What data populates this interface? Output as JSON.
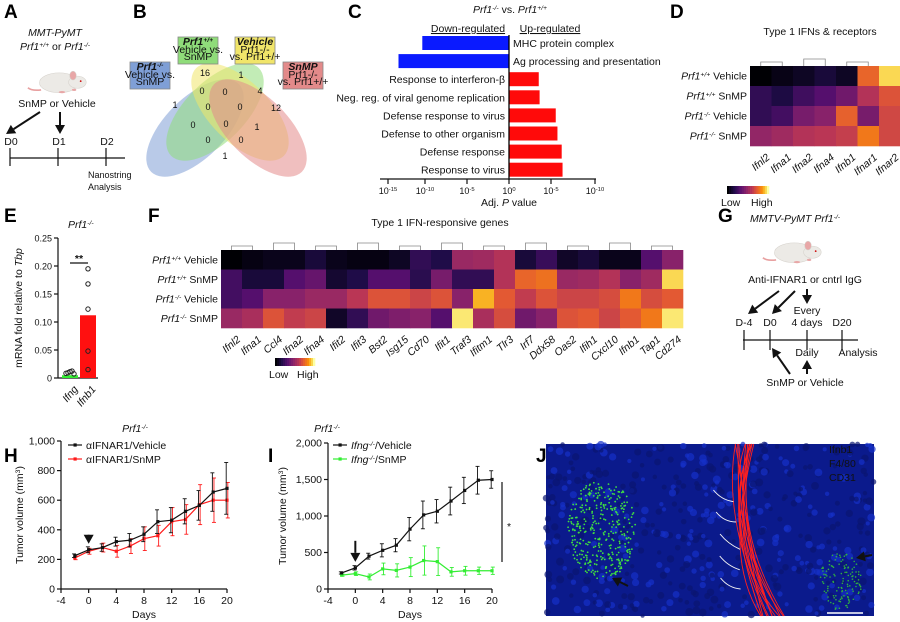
{
  "panels": {
    "A": {
      "label": "A",
      "title_line1": "MMT-PyMT",
      "title_line2": {
        "g1": "Prf1",
        "s1": "+/+",
        "mid": " or ",
        "g2": "Prf1",
        "s2": "-/-"
      },
      "treatment": "SnMP or Vehicle",
      "timepoints": [
        "D0",
        "D1",
        "D2"
      ],
      "analysis": [
        "Nanostring",
        "Analysis"
      ]
    },
    "B": {
      "label": "B",
      "sets": [
        {
          "title": "Prf1",
          "sup": "-/-",
          "lines": [
            "Vehicle vs.",
            "SnMP"
          ],
          "color": "#7f9fd6"
        },
        {
          "title": "Prf1",
          "sup": "+/+",
          "lines": [
            "Vehicle vs.",
            "SnMP"
          ],
          "color": "#8fdc7a"
        },
        {
          "title": "Vehicle",
          "sup": "",
          "lines": [
            "Prf1-/-",
            "vs. Prf1+/+"
          ],
          "color": "#f1e56a"
        },
        {
          "title": "SnMP",
          "sup": "",
          "lines": [
            "Prf1-/-",
            "vs. Prf1+/+"
          ],
          "color": "#e38a8a"
        }
      ],
      "counts": [
        "1",
        "16",
        "1",
        "0",
        "0",
        "4",
        "12",
        "0",
        "0",
        "0",
        "0",
        "1",
        "0",
        "0",
        "1"
      ]
    },
    "C": {
      "label": "C",
      "title": {
        "g1": "Prf1",
        "s1": "-/-",
        "mid": " vs. ",
        "g2": "Prf1",
        "s2": "+/+"
      },
      "down_label": "Down-regulated",
      "up_label": "Up-regulated",
      "xlabel": {
        "pre": "Adj. ",
        "it": "P",
        "post": " value"
      }
    },
    "D": {
      "label": "D",
      "title": "Type 1 IFNs & receptors",
      "legend_low": "Low",
      "legend_high": "High"
    },
    "E": {
      "label": "E",
      "title": {
        "g": "Prf1",
        "s": "-/-"
      },
      "ylabel": {
        "pre": "mRNA fold relative to ",
        "it": "Tbp"
      },
      "significance": "**"
    },
    "F": {
      "label": "F",
      "title": "Type 1 IFN-responsive genes",
      "legend_low": "Low",
      "legend_high": "High"
    },
    "G": {
      "label": "G",
      "title": {
        "g": "MMTV-PyMT Prf1",
        "s": "-/-"
      },
      "antibody": "Anti-IFNAR1 or cntrl IgG",
      "timepoints": [
        "D-4",
        "D0",
        "D20"
      ],
      "every": [
        "Every",
        "4 days"
      ],
      "daily": "Daily",
      "analysis": "Analysis",
      "treatment": "SnMP or Vehicle"
    },
    "H": {
      "label": "H",
      "title": {
        "g": "Prf1",
        "s": "-/-"
      }
    },
    "I": {
      "label": "I",
      "title": {
        "g": "Prf1",
        "s": "-/-"
      },
      "significance": "*"
    },
    "J": {
      "label": "J",
      "channels": [
        {
          "name": "Ifnb1",
          "color": "#3ddc3d"
        },
        {
          "name": "F4/80",
          "color": "#ff2020"
        },
        {
          "name": "CD31",
          "color": "#ffffff"
        }
      ]
    }
  },
  "row_labels": [
    {
      "g": "Prf1",
      "s": "+/+",
      "rest": " Vehicle"
    },
    {
      "g": "Prf1",
      "s": "+/+",
      "rest": " SnMP"
    },
    {
      "g": "Prf1",
      "s": "-/-",
      "rest": " Vehicle"
    },
    {
      "g": "Prf1",
      "s": "-/-",
      "rest": " SnMP"
    }
  ],
  "chart_data": [
    {
      "panel": "C",
      "type": "bar",
      "orientation": "horizontal",
      "categories": [
        "MHC protein complex",
        "Ag processing and presentation",
        "Response to interferon-β",
        "Neg. reg. of viral genome replication",
        "Defense response to virus",
        "Defense to other organism",
        "Defense response",
        "Response to virus"
      ],
      "values_log10_adjP_signed": [
        -10.2,
        -13.0,
        3.5,
        3.6,
        5.5,
        5.7,
        6.2,
        6.3
      ],
      "direction": [
        "down",
        "down",
        "up",
        "up",
        "up",
        "up",
        "up",
        "up"
      ],
      "xticks": [
        {
          "b": "10",
          "e": "-15"
        },
        {
          "b": "10",
          "e": "-10"
        },
        {
          "b": "10",
          "e": "-5"
        },
        {
          "b": "10",
          "e": "0"
        },
        {
          "b": "10",
          "e": "-5"
        },
        {
          "b": "10",
          "e": "-10"
        }
      ],
      "colors": {
        "down": "#0a1aff",
        "up": "#ff0a0a"
      }
    },
    {
      "panel": "D",
      "type": "heatmap",
      "colormap": "inferno",
      "columns": [
        "Ifnl2",
        "Ifna1",
        "Ifna2",
        "Ifna4",
        "Ifnb1",
        "Ifnar1",
        "Ifnar2"
      ],
      "values": [
        [
          0.0,
          0.04,
          0.07,
          0.12,
          0.07,
          0.75,
          0.95
        ],
        [
          0.2,
          0.14,
          0.24,
          0.3,
          0.38,
          0.58,
          0.7
        ],
        [
          0.2,
          0.25,
          0.4,
          0.45,
          0.74,
          0.4,
          0.66
        ],
        [
          0.48,
          0.52,
          0.58,
          0.6,
          0.63,
          0.8,
          0.66
        ]
      ]
    },
    {
      "panel": "E",
      "type": "bar",
      "categories": [
        "Ifng",
        "Ifnb1"
      ],
      "values": [
        0.005,
        0.112
      ],
      "points": [
        [
          0.003,
          0.004,
          0.006,
          0.007,
          0.002
        ],
        [
          0.195,
          0.168,
          0.123,
          0.048,
          0.015
        ]
      ],
      "yticks": [
        "0",
        "0.05",
        "0.10",
        "0.15",
        "0.20",
        "0.25"
      ],
      "ylim": [
        0,
        0.25
      ],
      "colors": [
        "#33ee33",
        "#ff1010"
      ]
    },
    {
      "panel": "F",
      "type": "heatmap",
      "colormap": "inferno",
      "columns": [
        "Ifnl2",
        "Ifna1",
        "Ccl4",
        "Ifna2",
        "Ifna4",
        "Ifit2",
        "Ifit3",
        "Bst2",
        "Isg15",
        "Cd70",
        "Ifit1",
        "Traf3",
        "Ifitm1",
        "Tlr3",
        "Irf7",
        "Ddx58",
        "Oas2",
        "Ifih1",
        "Cxcl10",
        "Ifnb1",
        "Tap1",
        "Cd274"
      ],
      "values": [
        [
          0.0,
          0.03,
          0.05,
          0.05,
          0.12,
          0.05,
          0.03,
          0.03,
          0.07,
          0.2,
          0.15,
          0.5,
          0.52,
          0.58,
          0.12,
          0.22,
          0.08,
          0.12,
          0.05,
          0.05,
          0.3,
          0.45
        ],
        [
          0.25,
          0.12,
          0.12,
          0.3,
          0.35,
          0.1,
          0.15,
          0.3,
          0.3,
          0.18,
          0.4,
          0.2,
          0.2,
          0.58,
          0.75,
          0.78,
          0.5,
          0.52,
          0.58,
          0.45,
          0.52,
          0.95
        ],
        [
          0.25,
          0.3,
          0.45,
          0.45,
          0.5,
          0.5,
          0.6,
          0.7,
          0.7,
          0.65,
          0.7,
          0.45,
          0.9,
          0.72,
          0.62,
          0.7,
          0.65,
          0.65,
          0.68,
          0.8,
          0.68,
          0.72
        ],
        [
          0.5,
          0.55,
          0.7,
          0.62,
          0.65,
          0.08,
          0.2,
          0.38,
          0.42,
          0.45,
          0.3,
          0.97,
          0.55,
          0.68,
          0.38,
          0.45,
          0.7,
          0.72,
          0.65,
          0.72,
          0.8,
          0.97
        ]
      ]
    },
    {
      "panel": "H",
      "type": "line",
      "xlabel": "Days",
      "ylabel": {
        "pre": "Tumor volume (mm",
        "sup": "3",
        "post": ")"
      },
      "x": [
        -2,
        0,
        2,
        4,
        6,
        8,
        10,
        12,
        14,
        16,
        18,
        20
      ],
      "xticks": [
        "-4",
        "0",
        "4",
        "8",
        "12",
        "16",
        "20"
      ],
      "yticks": [
        "0",
        "200",
        "400",
        "600",
        "800",
        "1,000"
      ],
      "xlim": [
        -4,
        20
      ],
      "ylim": [
        0,
        1000
      ],
      "series": [
        {
          "name": "αIFNAR1/Vehicle",
          "color": "#111111",
          "values": [
            225,
            265,
            280,
            320,
            330,
            370,
            455,
            465,
            525,
            565,
            655,
            680
          ],
          "err": [
            12,
            20,
            25,
            30,
            45,
            50,
            80,
            85,
            85,
            100,
            130,
            175
          ]
        },
        {
          "name": "αIFNAR1/SnMP",
          "color": "#ff1a1a",
          "values": [
            210,
            255,
            280,
            255,
            290,
            340,
            360,
            455,
            470,
            570,
            600,
            600
          ],
          "err": [
            12,
            20,
            30,
            40,
            50,
            80,
            70,
            95,
            100,
            135,
            150,
            120
          ]
        }
      ]
    },
    {
      "panel": "I",
      "type": "line",
      "xlabel": "Days",
      "ylabel": {
        "pre": "Tumor volume (mm",
        "sup": "3",
        "post": ")"
      },
      "x": [
        -2,
        0,
        2,
        4,
        6,
        8,
        10,
        12,
        14,
        16,
        18,
        20
      ],
      "xticks": [
        "-4",
        "0",
        "4",
        "8",
        "12",
        "16",
        "20"
      ],
      "yticks": [
        "0",
        "500",
        "1,000",
        "1,500",
        "2,000"
      ],
      "xlim": [
        -4,
        20
      ],
      "ylim": [
        0,
        2000
      ],
      "series": [
        {
          "name": "Ifng-/-/Vehicle",
          "name_parts": {
            "g": "Ifng",
            "s": "-/-",
            "rest": "/Vehicle"
          },
          "color": "#111111",
          "values": [
            220,
            290,
            450,
            530,
            600,
            820,
            1015,
            1065,
            1205,
            1350,
            1490,
            1500
          ],
          "err": [
            15,
            30,
            40,
            90,
            90,
            160,
            190,
            160,
            190,
            180,
            190,
            120
          ]
        },
        {
          "name": "Ifng-/-/SnMP",
          "name_parts": {
            "g": "Ifng",
            "s": "-/-",
            "rest": "/SnMP"
          },
          "color": "#33ee33",
          "values": [
            190,
            210,
            165,
            275,
            255,
            300,
            390,
            375,
            235,
            250,
            250,
            250
          ],
          "err": [
            15,
            25,
            40,
            80,
            90,
            130,
            200,
            190,
            60,
            60,
            50,
            50
          ]
        }
      ]
    }
  ]
}
